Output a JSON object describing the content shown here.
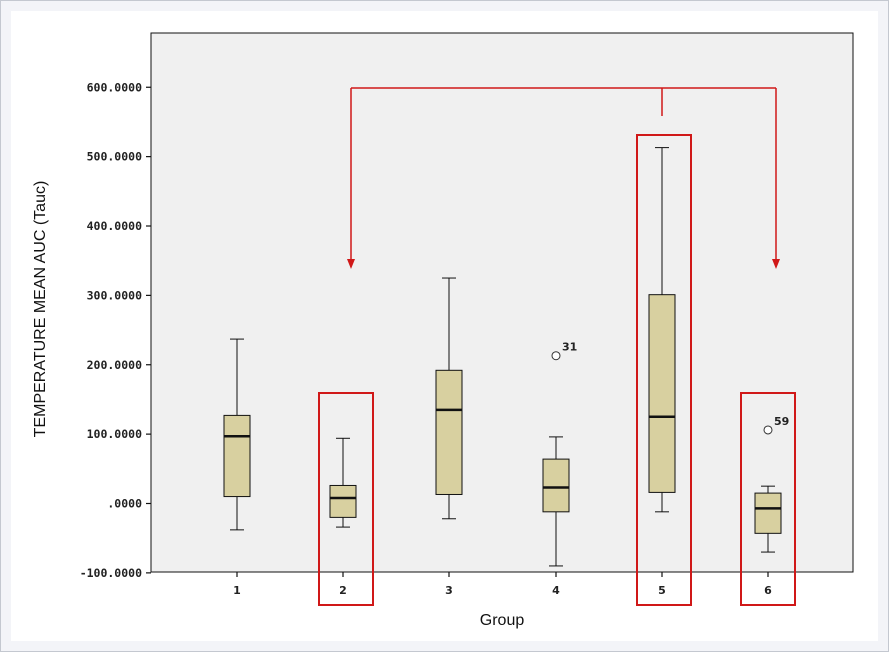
{
  "chart_data": {
    "type": "box",
    "xlabel": "Group",
    "ylabel": "TEMPERATURE MEAN AUC (Tauc)",
    "ylim": [
      -100,
      700
    ],
    "yticks": [
      -100,
      0,
      100,
      200,
      300,
      400,
      500,
      600
    ],
    "ytick_labels": [
      "-100.0000",
      ".0000",
      "100.0000",
      "200.0000",
      "300.0000",
      "400.0000",
      "500.0000",
      "600.0000"
    ],
    "categories": [
      "1",
      "2",
      "3",
      "4",
      "5",
      "6"
    ],
    "boxes": [
      {
        "group": "1",
        "whisker_low": -38,
        "q1": 10,
        "median": 97,
        "q3": 127,
        "whisker_high": 237
      },
      {
        "group": "2",
        "whisker_low": -34,
        "q1": -20,
        "median": 8,
        "q3": 26,
        "whisker_high": 94
      },
      {
        "group": "3",
        "whisker_low": -22,
        "q1": 13,
        "median": 135,
        "q3": 192,
        "whisker_high": 325
      },
      {
        "group": "4",
        "whisker_low": -90,
        "q1": -12,
        "median": 23,
        "q3": 64,
        "whisker_high": 96
      },
      {
        "group": "5",
        "whisker_low": -12,
        "q1": 16,
        "median": 125,
        "q3": 301,
        "whisker_high": 513
      },
      {
        "group": "6",
        "whisker_low": -70,
        "q1": -43,
        "median": -7,
        "q3": 15,
        "whisker_high": 25
      }
    ],
    "outliers": [
      {
        "group": "4",
        "value": 213,
        "label": "31"
      },
      {
        "group": "6",
        "value": 106,
        "label": "59"
      }
    ],
    "highlighted_groups": [
      "2",
      "5",
      "6"
    ],
    "comparison_arrow": {
      "from": "5",
      "to": [
        "2",
        "6"
      ]
    },
    "grid": false,
    "colors": {
      "box_fill": "#d8d0a0",
      "plot_background": "#f0f0f0",
      "highlight": "#d01818",
      "line": "#111111"
    }
  }
}
